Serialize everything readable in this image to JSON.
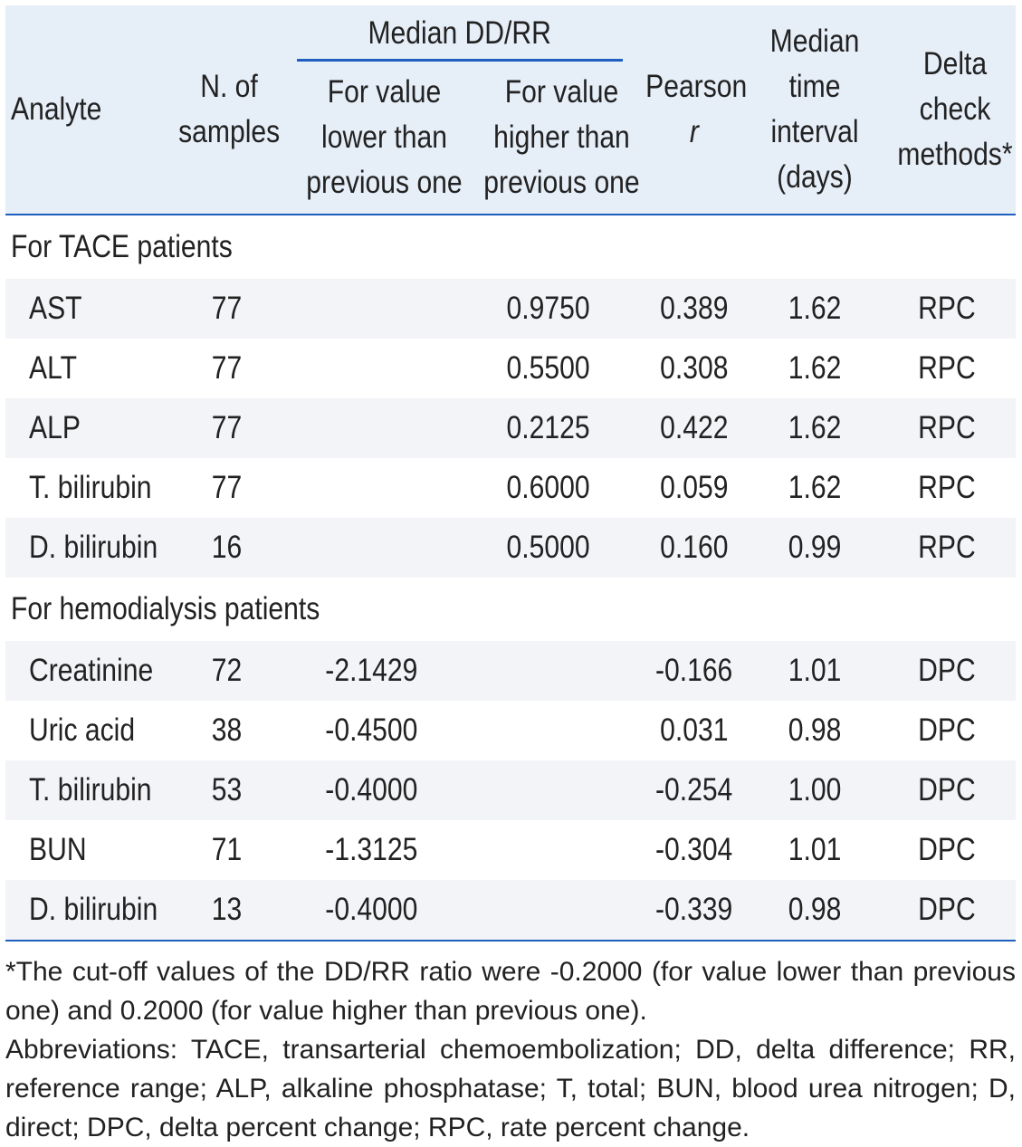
{
  "header": {
    "analyte": "Analyte",
    "n_samples": "N. of samples",
    "median_ddrr": "Median DD/RR",
    "lower": "For value lower than previous one",
    "higher": "For value higher than previous one",
    "pearson_label": "Pearson",
    "pearson_r": "r",
    "median_time": "Median time interval (days)",
    "delta_check": "Delta check methods*"
  },
  "sections": [
    {
      "title": "For TACE patients",
      "rows": [
        {
          "analyte": "AST",
          "n": "77",
          "lower": "",
          "higher": "0.9750",
          "r": "0.389",
          "time": "1.62",
          "method": "RPC"
        },
        {
          "analyte": "ALT",
          "n": "77",
          "lower": "",
          "higher": "0.5500",
          "r": "0.308",
          "time": "1.62",
          "method": "RPC"
        },
        {
          "analyte": "ALP",
          "n": "77",
          "lower": "",
          "higher": "0.2125",
          "r": "0.422",
          "time": "1.62",
          "method": "RPC"
        },
        {
          "analyte": "T. bilirubin",
          "n": "77",
          "lower": "",
          "higher": "0.6000",
          "r": "0.059",
          "time": "1.62",
          "method": "RPC"
        },
        {
          "analyte": "D. bilirubin",
          "n": "16",
          "lower": "",
          "higher": "0.5000",
          "r": "0.160",
          "time": "0.99",
          "method": "RPC"
        }
      ]
    },
    {
      "title": "For hemodialysis patients",
      "rows": [
        {
          "analyte": "Creatinine",
          "n": "72",
          "lower": "-2.1429",
          "higher": "",
          "r": "-0.166",
          "time": "1.01",
          "method": "DPC"
        },
        {
          "analyte": "Uric acid",
          "n": "38",
          "lower": "-0.4500",
          "higher": "",
          "r": "0.031",
          "time": "0.98",
          "method": "DPC"
        },
        {
          "analyte": "T. bilirubin",
          "n": "53",
          "lower": "-0.4000",
          "higher": "",
          "r": "-0.254",
          "time": "1.00",
          "method": "DPC"
        },
        {
          "analyte": "BUN",
          "n": "71",
          "lower": "-1.3125",
          "higher": "",
          "r": "-0.304",
          "time": "1.01",
          "method": "DPC"
        },
        {
          "analyte": "D. bilirubin",
          "n": "13",
          "lower": "-0.4000",
          "higher": "",
          "r": "-0.339",
          "time": "0.98",
          "method": "DPC"
        }
      ]
    }
  ],
  "notes": {
    "footnote": "*The cut-off values of the DD/RR ratio were -0.2000 (for value lower than previous one) and 0.2000 (for value higher than previous one).",
    "abbreviations": "Abbreviations: TACE, transarterial chemoembolization; DD, delta difference; RR, reference range; ALP, alkaline phosphatase; T, total; BUN, blood urea nitrogen; D, direct; DPC, delta percent change; RPC, rate percent change."
  }
}
